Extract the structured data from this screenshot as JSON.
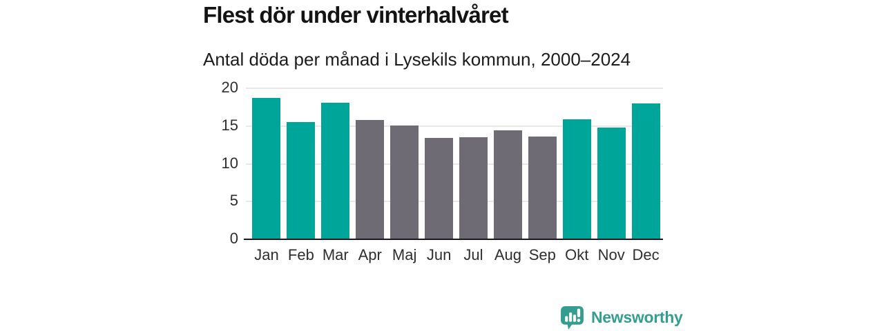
{
  "header": {
    "title": "Flest dör under vinterhalvåret",
    "subtitle": "Antal döda per månad i Lysekils kommun, 2000–2024"
  },
  "chart_data": {
    "type": "bar",
    "title": "Flest dör under vinterhalvåret",
    "subtitle": "Antal döda per månad i Lysekils kommun, 2000–2024",
    "categories": [
      "Jan",
      "Feb",
      "Mar",
      "Apr",
      "Maj",
      "Jun",
      "Jul",
      "Aug",
      "Sep",
      "Okt",
      "Nov",
      "Dec"
    ],
    "values": [
      18.7,
      15.5,
      18.1,
      15.8,
      15.1,
      13.4,
      13.5,
      14.4,
      13.6,
      15.9,
      14.8,
      18.0
    ],
    "bar_color_keys": [
      "teal",
      "teal",
      "teal",
      "gray",
      "gray",
      "gray",
      "gray",
      "gray",
      "gray",
      "teal",
      "teal",
      "teal"
    ],
    "xlabel": "",
    "ylabel": "",
    "ylim": [
      0,
      20
    ],
    "yticks": [
      0,
      5,
      10,
      15,
      20
    ],
    "grid": true,
    "legend": false
  },
  "colors": {
    "teal": "#00a59a",
    "gray": "#6f6b74",
    "grid": "#e8e8eb",
    "axis": "#17171d",
    "logo": "#339e90"
  },
  "branding": {
    "name": "Newsworthy",
    "logo_icon": "bar-chart-speech-bubble-icon"
  }
}
